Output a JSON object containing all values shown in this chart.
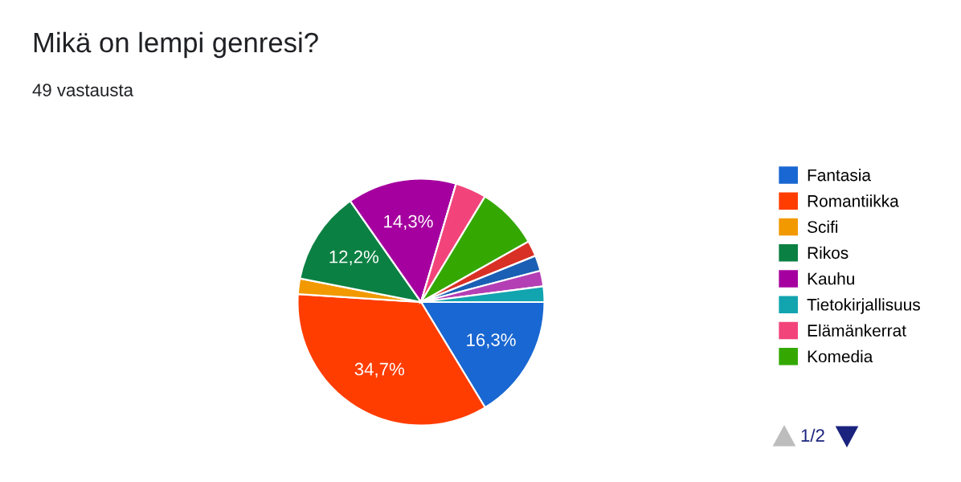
{
  "chart_data": {
    "type": "pie",
    "title": "Mikä on lempi genresi?",
    "subtitle": "49 vastausta",
    "categories": [
      "Fantasia",
      "Romantiikka",
      "Scifi",
      "Rikos",
      "Kauhu",
      "Tietokirjallisuus",
      "Elämänkerrat",
      "Komedia",
      null,
      null,
      null,
      null
    ],
    "values": [
      16.3,
      34.7,
      2.04,
      12.2,
      14.3,
      0,
      4.08,
      8.16,
      2.04,
      2.04,
      2.04,
      2.04
    ],
    "colors": [
      "#1967d2",
      "#ff3d00",
      "#f29900",
      "#0b8043",
      "#a5009f",
      "#12a4af",
      "#f2447a",
      "#34a800",
      "#d93025",
      "#1a5fb4",
      "#b43fb4",
      "#12a4af"
    ],
    "value_labels": [
      "16,3%",
      "34,7%",
      null,
      "12,2%",
      "14,3%",
      null,
      null,
      null,
      null,
      null,
      null,
      null
    ],
    "legend": "right",
    "annotations": [
      "1/2"
    ]
  }
}
